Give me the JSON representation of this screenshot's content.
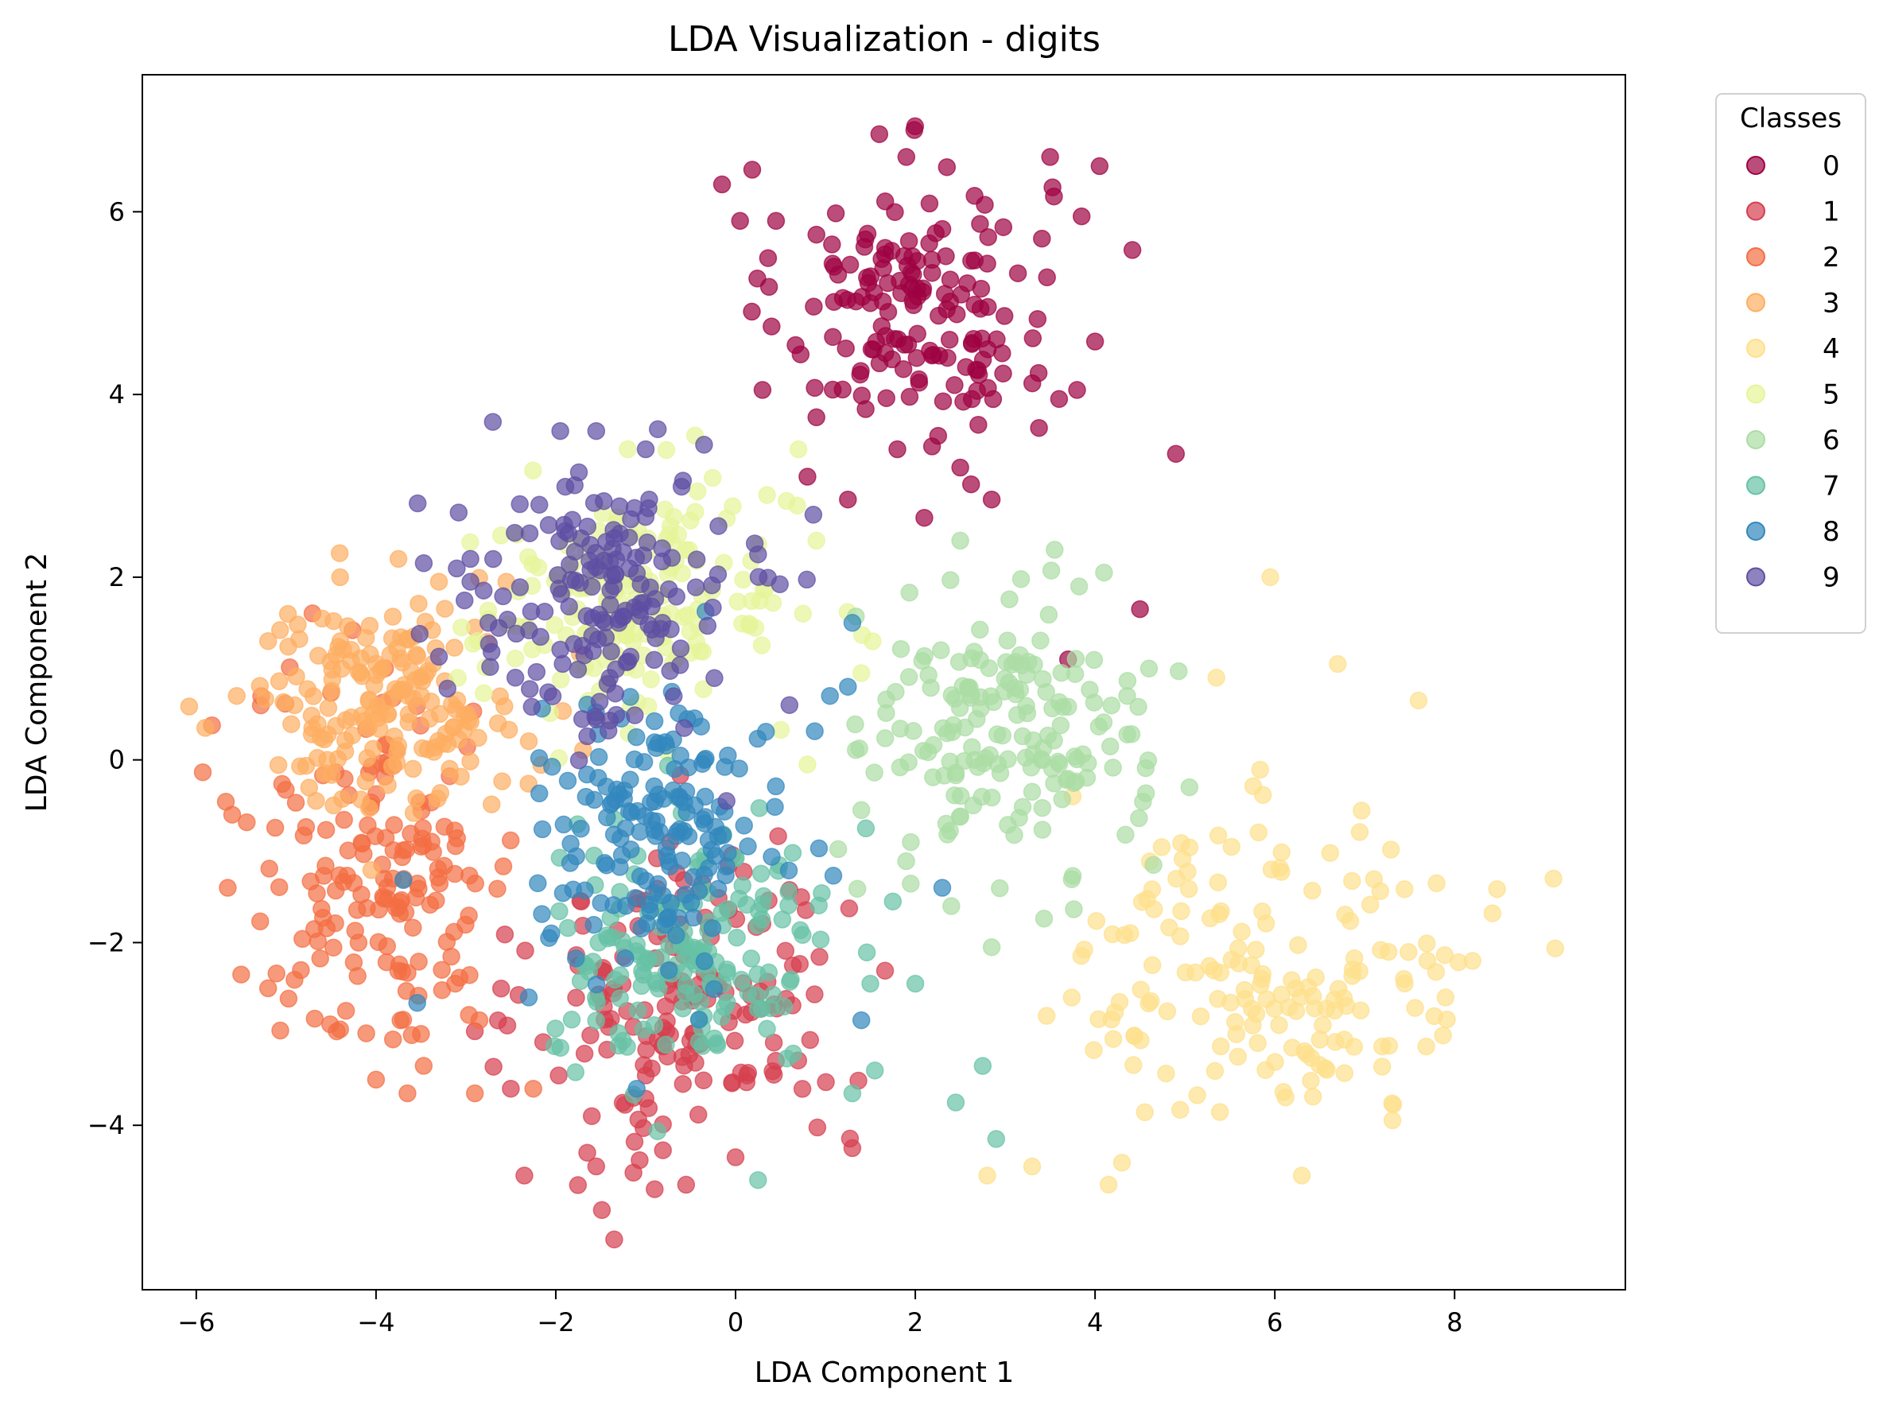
{
  "chart_data": {
    "type": "scatter",
    "title": "LDA Visualization - digits",
    "xlabel": "LDA Component 1",
    "ylabel": "LDA Component 2",
    "xlim": [
      -6.6,
      9.9
    ],
    "ylim": [
      -5.8,
      7.5
    ],
    "xticks": [
      -6,
      -4,
      -2,
      0,
      2,
      4,
      6,
      8
    ],
    "yticks": [
      -4,
      -2,
      0,
      2,
      4,
      6
    ],
    "grid": false,
    "legend": {
      "title": "Classes",
      "placement": "outside-right-top"
    },
    "series": [
      {
        "name": "0",
        "color": "#9e0142",
        "center": [
          2.0,
          5.0
        ],
        "spread": [
          0.75,
          0.75
        ],
        "count": 178,
        "points": [
          [
            1.6,
            6.85
          ],
          [
            1.9,
            6.6
          ],
          [
            3.5,
            6.6
          ],
          [
            4.05,
            6.5
          ],
          [
            3.85,
            5.95
          ],
          [
            0.05,
            5.9
          ],
          [
            -0.15,
            6.3
          ],
          [
            0.9,
            5.75
          ],
          [
            0.45,
            5.9
          ],
          [
            1.5,
            5.0
          ],
          [
            4.0,
            4.58
          ],
          [
            3.8,
            4.05
          ],
          [
            3.6,
            3.95
          ],
          [
            4.9,
            3.35
          ],
          [
            0.3,
            4.05
          ],
          [
            0.8,
            3.1
          ],
          [
            1.25,
            2.85
          ],
          [
            2.85,
            2.85
          ],
          [
            2.1,
            2.65
          ],
          [
            4.5,
            1.65
          ],
          [
            3.7,
            1.1
          ],
          [
            2.5,
            3.2
          ],
          [
            1.8,
            3.4
          ],
          [
            0.9,
            3.75
          ]
        ]
      }
    ],
    "series_more": [
      {
        "name": "1",
        "color": "#d53e4f",
        "center": [
          -0.5,
          -2.6
        ],
        "spread": [
          0.85,
          0.9
        ],
        "count": 182,
        "points": [
          [
            -1.35,
            -5.25
          ],
          [
            -0.9,
            -4.7
          ],
          [
            -0.55,
            -4.65
          ],
          [
            -2.35,
            -4.55
          ],
          [
            -1.55,
            -4.45
          ],
          [
            -1.65,
            -4.3
          ],
          [
            0.0,
            -4.35
          ],
          [
            1.3,
            -4.25
          ],
          [
            -1.6,
            -3.9
          ],
          [
            -2.5,
            -3.6
          ]
        ]
      },
      {
        "name": "2",
        "color": "#f46d43",
        "center": [
          -3.9,
          -1.2
        ],
        "spread": [
          0.75,
          1.0
        ],
        "count": 177,
        "points": [
          [
            -5.65,
            -1.4
          ],
          [
            -5.6,
            -0.6
          ],
          [
            -5.5,
            -2.35
          ],
          [
            -5.2,
            -2.5
          ],
          [
            -4.4,
            -2.95
          ],
          [
            -4.0,
            -3.5
          ],
          [
            -3.65,
            -3.65
          ],
          [
            -3.5,
            -3.0
          ],
          [
            -2.9,
            -3.65
          ],
          [
            -2.85,
            -2.85
          ],
          [
            -2.25,
            -3.6
          ]
        ]
      },
      {
        "name": "3",
        "color": "#fdae61",
        "center": [
          -3.9,
          0.6
        ],
        "spread": [
          0.75,
          0.55
        ],
        "count": 183,
        "points": [
          [
            -5.9,
            0.35
          ],
          [
            -5.55,
            0.7
          ],
          [
            -5.2,
            1.3
          ],
          [
            -4.4,
            2.0
          ],
          [
            -3.75,
            2.2
          ],
          [
            -3.3,
            1.95
          ],
          [
            -2.55,
            1.95
          ],
          [
            -2.9,
            1.45
          ]
        ]
      },
      {
        "name": "4",
        "color": "#fee08b",
        "center": [
          6.0,
          -2.3
        ],
        "spread": [
          1.1,
          0.85
        ],
        "count": 181,
        "points": [
          [
            9.1,
            -1.3
          ],
          [
            8.2,
            -2.2
          ],
          [
            7.9,
            -2.6
          ],
          [
            7.8,
            -1.35
          ],
          [
            7.6,
            0.65
          ],
          [
            6.7,
            1.05
          ],
          [
            5.95,
            2.0
          ],
          [
            5.35,
            0.9
          ],
          [
            6.3,
            -4.55
          ],
          [
            4.15,
            -4.65
          ],
          [
            3.3,
            -4.45
          ],
          [
            2.8,
            -4.55
          ],
          [
            3.75,
            -0.4
          ]
        ]
      },
      {
        "name": "5",
        "color": "#e6f598",
        "center": [
          -1.1,
          1.7
        ],
        "spread": [
          0.9,
          0.6
        ],
        "count": 182,
        "points": [
          [
            -0.45,
            3.55
          ],
          [
            -1.2,
            3.4
          ],
          [
            0.7,
            3.4
          ],
          [
            0.9,
            2.4
          ],
          [
            0.35,
            2.9
          ],
          [
            -3.05,
            1.45
          ],
          [
            0.75,
            1.6
          ],
          [
            1.4,
            0.95
          ],
          [
            0.8,
            -0.05
          ]
        ]
      },
      {
        "name": "6",
        "color": "#abdda4",
        "center": [
          3.0,
          0.3
        ],
        "spread": [
          0.75,
          0.75
        ],
        "count": 181,
        "points": [
          [
            2.5,
            2.4
          ],
          [
            3.55,
            2.3
          ],
          [
            4.1,
            2.05
          ],
          [
            4.6,
            1.0
          ],
          [
            5.05,
            -0.3
          ],
          [
            4.65,
            -1.15
          ],
          [
            2.4,
            -1.6
          ],
          [
            2.85,
            -2.05
          ],
          [
            1.4,
            -0.55
          ],
          [
            1.95,
            -0.9
          ]
        ]
      },
      {
        "name": "7",
        "color": "#66c2a5",
        "center": [
          -0.5,
          -2.1
        ],
        "spread": [
          0.75,
          0.65
        ],
        "count": 179,
        "points": [
          [
            0.25,
            -4.6
          ],
          [
            2.9,
            -4.15
          ],
          [
            2.45,
            -3.75
          ],
          [
            2.75,
            -3.35
          ],
          [
            1.55,
            -3.4
          ],
          [
            1.5,
            -2.45
          ],
          [
            2.0,
            -2.45
          ],
          [
            1.75,
            -1.55
          ],
          [
            1.45,
            -0.75
          ],
          [
            1.3,
            -3.65
          ]
        ]
      },
      {
        "name": "8",
        "color": "#3288bd",
        "center": [
          -0.8,
          -0.7
        ],
        "spread": [
          0.7,
          0.7
        ],
        "count": 174,
        "points": [
          [
            1.3,
            1.5
          ],
          [
            1.25,
            0.8
          ],
          [
            1.05,
            0.7
          ],
          [
            -2.3,
            -2.6
          ],
          [
            -2.05,
            -1.9
          ],
          [
            1.4,
            -2.85
          ],
          [
            2.3,
            -1.4
          ],
          [
            -2.2,
            -1.35
          ],
          [
            -1.1,
            -3.6
          ]
        ]
      },
      {
        "name": "9",
        "color": "#5e4fa2",
        "center": [
          -1.5,
          1.7
        ],
        "spread": [
          0.75,
          0.7
        ],
        "count": 180,
        "points": [
          [
            -2.7,
            3.7
          ],
          [
            -1.95,
            3.6
          ],
          [
            -1.55,
            3.6
          ],
          [
            -1.0,
            3.4
          ],
          [
            -0.35,
            3.45
          ],
          [
            -2.4,
            2.8
          ],
          [
            -2.95,
            2.2
          ],
          [
            -2.95,
            1.95
          ],
          [
            0.25,
            2.25
          ],
          [
            -2.45,
            0.9
          ],
          [
            -0.1,
            -0.45
          ],
          [
            0.6,
            0.6
          ],
          [
            -2.75,
            1.5
          ]
        ]
      }
    ]
  }
}
